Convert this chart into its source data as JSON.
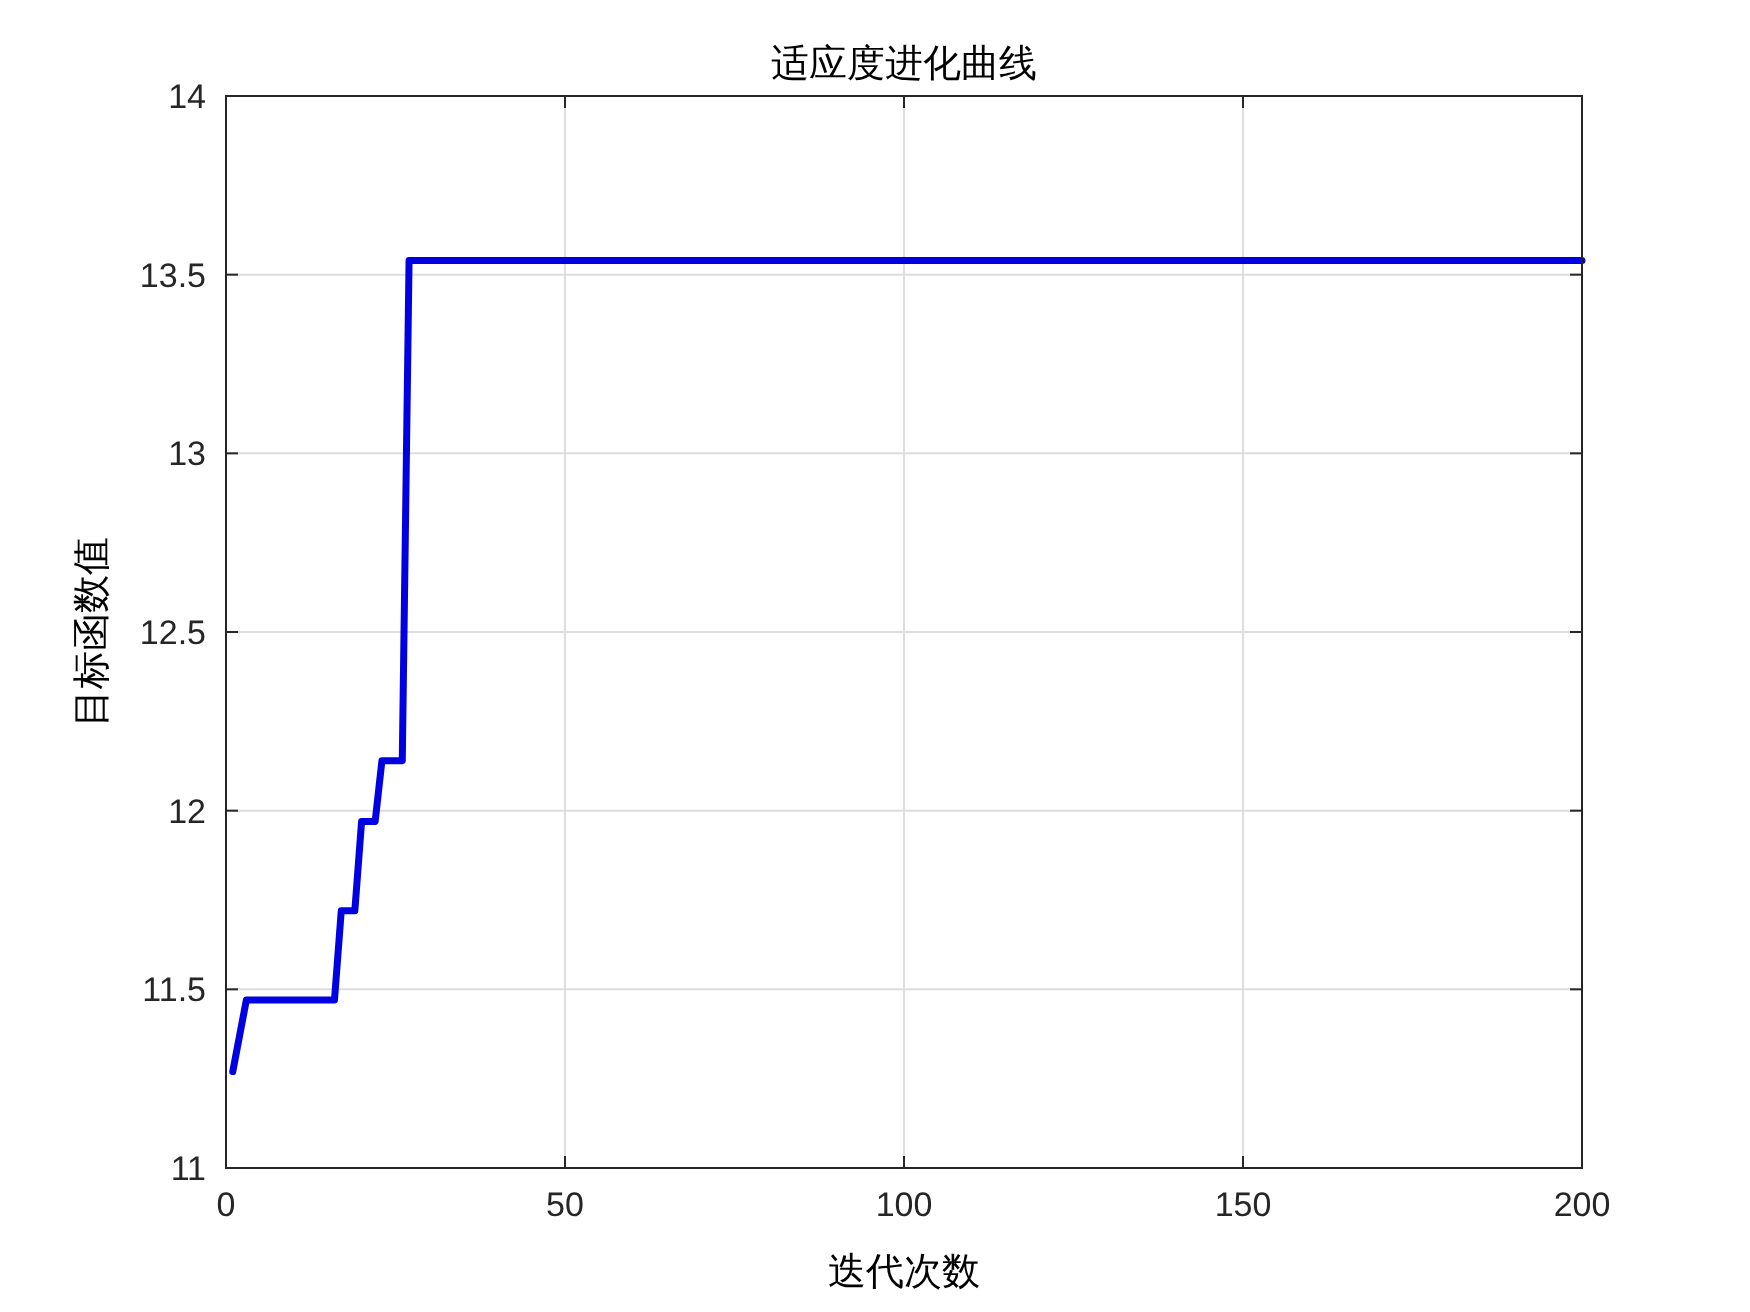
{
  "chart_data": {
    "type": "line",
    "title": "适应度进化曲线",
    "xlabel": "迭代次数",
    "ylabel": "目标函数值",
    "x": [
      1,
      3,
      16,
      17,
      19,
      20,
      22,
      23,
      26,
      27,
      200
    ],
    "series": [
      {
        "color": "#0000e0",
        "values": [
          11.27,
          11.47,
          11.47,
          11.72,
          11.72,
          11.97,
          11.97,
          12.14,
          12.14,
          13.54,
          13.54
        ]
      }
    ],
    "xlim": [
      0,
      200
    ],
    "ylim": [
      11,
      14
    ],
    "xticks": [
      0,
      50,
      100,
      150,
      200
    ],
    "yticks": [
      11,
      11.5,
      12,
      12.5,
      13,
      13.5,
      14
    ],
    "grid": true
  }
}
